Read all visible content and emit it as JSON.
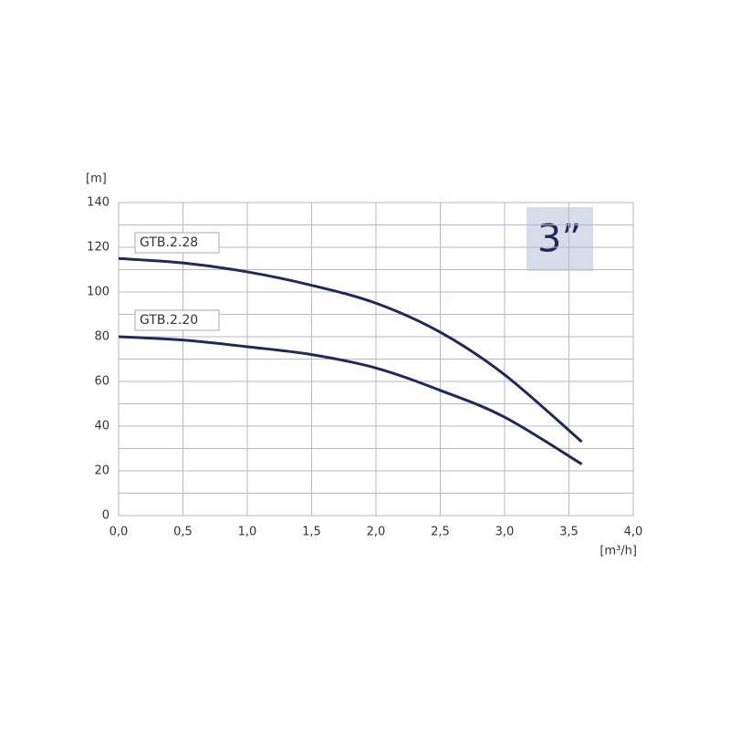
{
  "chart_data": {
    "type": "line",
    "y_label": "[m]",
    "x_label": "[m³/h]",
    "annotation": "3”",
    "x": [
      0,
      0.5,
      1.0,
      1.5,
      2.0,
      2.5,
      3.0,
      3.6
    ],
    "series": [
      {
        "name": "GTB.2.28",
        "color": "#1f2a5a",
        "values": [
          115,
          113,
          109,
          103,
          95,
          82,
          63,
          33
        ]
      },
      {
        "name": "GTB.2.20",
        "color": "#1f2a5a",
        "values": [
          80,
          78.5,
          75.5,
          72,
          66,
          56,
          44,
          23
        ]
      }
    ],
    "xlim": [
      0,
      4
    ],
    "xticks": [
      {
        "value": 0,
        "label": "0,0"
      },
      {
        "value": 0.5,
        "label": "0,5"
      },
      {
        "value": 1,
        "label": "1,0"
      },
      {
        "value": 1.5,
        "label": "1,5"
      },
      {
        "value": 2,
        "label": "2,0"
      },
      {
        "value": 2.5,
        "label": "2,5"
      },
      {
        "value": 3,
        "label": "3,0"
      },
      {
        "value": 3.5,
        "label": "3,5"
      },
      {
        "value": 4,
        "label": "4,0"
      }
    ],
    "ylim": [
      0,
      140
    ],
    "yticks": [
      0,
      20,
      40,
      60,
      80,
      100,
      120,
      140
    ],
    "grid": true
  }
}
